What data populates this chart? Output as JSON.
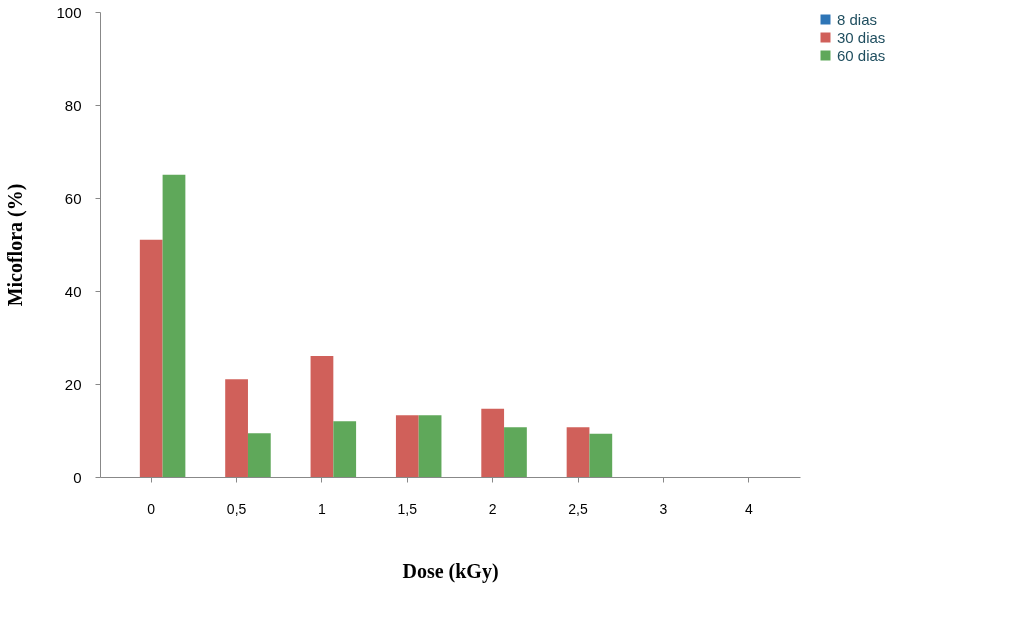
{
  "chart_data": {
    "type": "bar",
    "xlabel": "Dose (kGy)",
    "ylabel": "Micoflora (%)",
    "categories": [
      "0",
      "0,5",
      "1",
      "1,5",
      "2",
      "2,5",
      "3",
      "4"
    ],
    "series": [
      {
        "name": "8 dias",
        "color": "#2e75b6",
        "values": [
          0,
          0,
          0,
          0,
          0,
          0,
          0,
          0
        ]
      },
      {
        "name": "30 dias",
        "color": "#d0605a",
        "values": [
          51,
          21,
          26,
          13.3,
          14.7,
          10.7,
          0,
          0
        ]
      },
      {
        "name": "60 dias",
        "color": "#5fa85a",
        "values": [
          65,
          9.4,
          12,
          13.3,
          10.7,
          9.3,
          0,
          0
        ]
      }
    ],
    "ylim": [
      0,
      100
    ],
    "yticks": [
      0,
      20,
      40,
      60,
      80,
      100
    ],
    "grid": false,
    "legend": "right"
  }
}
